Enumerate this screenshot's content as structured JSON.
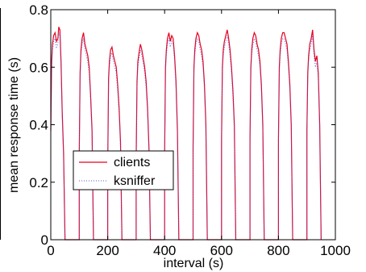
{
  "chart_data": {
    "type": "line",
    "title": "",
    "xlabel": "interval (s)",
    "ylabel": "mean response time (s)",
    "xlim": [
      0,
      1000
    ],
    "ylim": [
      0,
      0.8
    ],
    "xticks": [
      0,
      200,
      400,
      600,
      800,
      1000
    ],
    "xtick_labels": [
      "0",
      "200",
      "400",
      "600",
      "800",
      "1000"
    ],
    "yticks": [
      0,
      0.2,
      0.4,
      0.6,
      0.8
    ],
    "ytick_labels": [
      "0",
      "0.2",
      "0.4",
      "0.6",
      "0.8"
    ],
    "grid": false,
    "legend_position": "left-center",
    "series": [
      {
        "name": "clients",
        "color": "#e8001e",
        "line_style": "solid",
        "x": [
          0,
          3,
          6,
          10,
          15,
          20,
          25,
          28,
          32,
          36,
          40,
          45,
          50,
          100,
          103,
          106,
          110,
          115,
          120,
          125,
          130,
          135,
          140,
          145,
          150,
          200,
          203,
          206,
          210,
          215,
          220,
          225,
          230,
          235,
          240,
          245,
          250,
          300,
          303,
          306,
          310,
          315,
          320,
          325,
          330,
          335,
          340,
          345,
          350,
          400,
          403,
          406,
          410,
          415,
          420,
          425,
          430,
          435,
          440,
          445,
          450,
          500,
          503,
          506,
          510,
          515,
          520,
          525,
          530,
          535,
          540,
          545,
          550,
          600,
          603,
          606,
          610,
          615,
          620,
          625,
          630,
          635,
          640,
          645,
          650,
          700,
          703,
          706,
          710,
          715,
          720,
          725,
          730,
          735,
          740,
          745,
          750,
          800,
          803,
          806,
          810,
          815,
          820,
          825,
          830,
          835,
          840,
          845,
          850,
          900,
          903,
          906,
          910,
          915,
          920,
          925,
          930,
          935,
          940,
          945,
          950
        ],
        "y": [
          0.38,
          0.62,
          0.68,
          0.71,
          0.72,
          0.69,
          0.7,
          0.74,
          0.73,
          0.62,
          0.45,
          0.3,
          0,
          0.3,
          0.58,
          0.66,
          0.7,
          0.72,
          0.68,
          0.66,
          0.64,
          0.6,
          0.5,
          0.38,
          0,
          0.25,
          0.56,
          0.62,
          0.66,
          0.67,
          0.64,
          0.62,
          0.6,
          0.54,
          0.46,
          0.34,
          0,
          0.28,
          0.55,
          0.62,
          0.65,
          0.68,
          0.66,
          0.63,
          0.6,
          0.55,
          0.46,
          0.32,
          0,
          0.3,
          0.6,
          0.66,
          0.7,
          0.72,
          0.69,
          0.71,
          0.7,
          0.64,
          0.55,
          0.38,
          0,
          0.32,
          0.6,
          0.66,
          0.7,
          0.72,
          0.71,
          0.68,
          0.66,
          0.62,
          0.54,
          0.4,
          0,
          0.35,
          0.6,
          0.66,
          0.69,
          0.71,
          0.73,
          0.7,
          0.66,
          0.6,
          0.52,
          0.4,
          0,
          0.35,
          0.6,
          0.66,
          0.7,
          0.72,
          0.71,
          0.68,
          0.66,
          0.62,
          0.54,
          0.4,
          0,
          0.35,
          0.6,
          0.66,
          0.7,
          0.72,
          0.72,
          0.7,
          0.68,
          0.62,
          0.54,
          0.4,
          0,
          0.38,
          0.58,
          0.64,
          0.68,
          0.7,
          0.73,
          0.66,
          0.62,
          0.64,
          0.58,
          0.4,
          0
        ]
      },
      {
        "name": "ksniffer",
        "color": "#5a5ad6",
        "line_style": "dotted",
        "x": [
          0,
          3,
          6,
          10,
          15,
          20,
          25,
          28,
          32,
          36,
          40,
          45,
          50,
          100,
          103,
          106,
          110,
          115,
          120,
          125,
          130,
          135,
          140,
          145,
          150,
          200,
          203,
          206,
          210,
          215,
          220,
          225,
          230,
          235,
          240,
          245,
          250,
          300,
          303,
          306,
          310,
          315,
          320,
          325,
          330,
          335,
          340,
          345,
          350,
          400,
          403,
          406,
          410,
          415,
          420,
          425,
          430,
          435,
          440,
          445,
          450,
          500,
          503,
          506,
          510,
          515,
          520,
          525,
          530,
          535,
          540,
          545,
          550,
          600,
          603,
          606,
          610,
          615,
          620,
          625,
          630,
          635,
          640,
          645,
          650,
          700,
          703,
          706,
          710,
          715,
          720,
          725,
          730,
          735,
          740,
          745,
          750,
          800,
          803,
          806,
          810,
          815,
          820,
          825,
          830,
          835,
          840,
          845,
          850,
          900,
          903,
          906,
          910,
          915,
          920,
          925,
          930,
          935,
          940,
          945,
          950
        ],
        "y": [
          0.36,
          0.6,
          0.66,
          0.69,
          0.7,
          0.67,
          0.68,
          0.72,
          0.71,
          0.6,
          0.43,
          0.28,
          0,
          0.28,
          0.56,
          0.64,
          0.68,
          0.7,
          0.66,
          0.64,
          0.62,
          0.58,
          0.48,
          0.36,
          0,
          0.23,
          0.54,
          0.6,
          0.64,
          0.65,
          0.62,
          0.6,
          0.58,
          0.52,
          0.44,
          0.32,
          0,
          0.26,
          0.53,
          0.6,
          0.63,
          0.66,
          0.64,
          0.61,
          0.58,
          0.53,
          0.44,
          0.3,
          0,
          0.28,
          0.58,
          0.64,
          0.68,
          0.7,
          0.67,
          0.69,
          0.68,
          0.62,
          0.53,
          0.36,
          0,
          0.3,
          0.58,
          0.64,
          0.68,
          0.7,
          0.69,
          0.66,
          0.64,
          0.6,
          0.52,
          0.38,
          0,
          0.33,
          0.58,
          0.64,
          0.67,
          0.69,
          0.71,
          0.68,
          0.64,
          0.58,
          0.5,
          0.38,
          0,
          0.33,
          0.58,
          0.64,
          0.68,
          0.7,
          0.69,
          0.66,
          0.64,
          0.6,
          0.52,
          0.38,
          0,
          0.33,
          0.58,
          0.64,
          0.68,
          0.7,
          0.7,
          0.68,
          0.66,
          0.6,
          0.52,
          0.38,
          0,
          0.36,
          0.56,
          0.62,
          0.66,
          0.68,
          0.71,
          0.64,
          0.6,
          0.62,
          0.56,
          0.38,
          0
        ]
      }
    ]
  }
}
